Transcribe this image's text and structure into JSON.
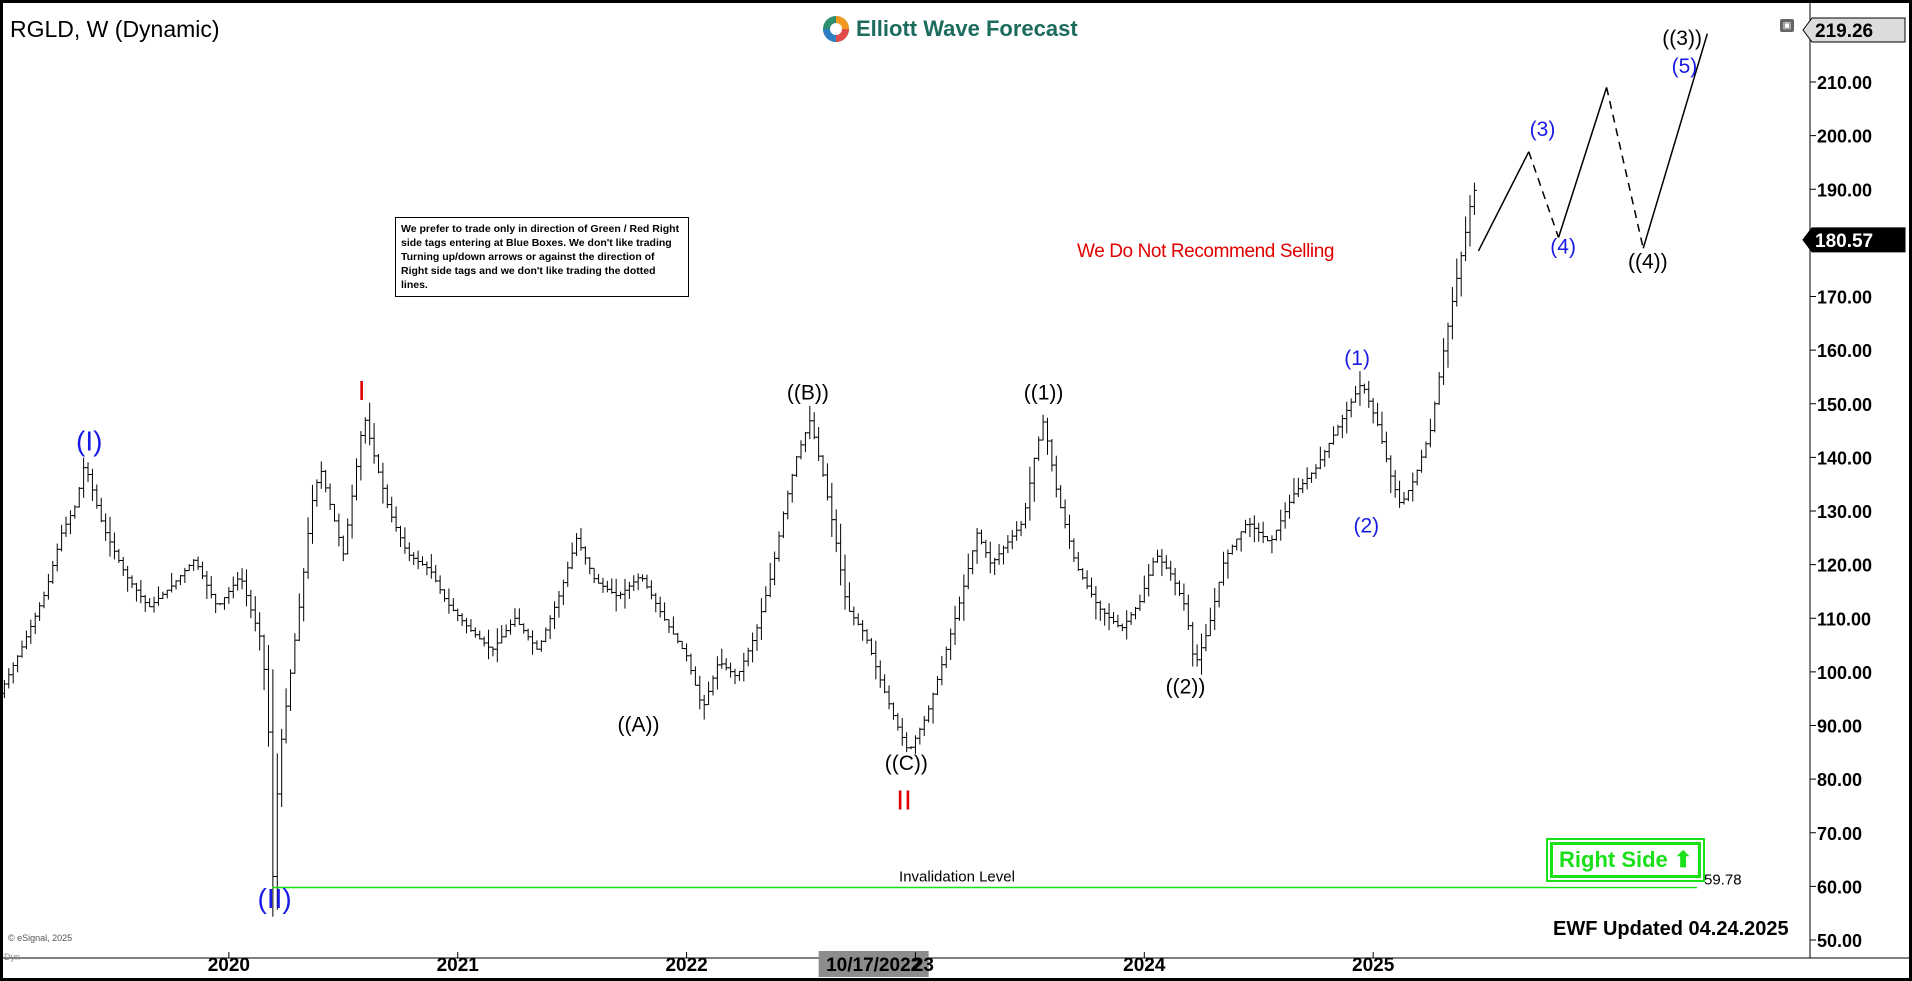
{
  "header": {
    "symbol": "RGLD, W (Dynamic)",
    "brand": "Elliott Wave Forecast"
  },
  "notes": {
    "trade_note": "We prefer to trade only in direction of Green / Red Right side tags entering at Blue Boxes. We don't like trading Turning up/down arrows or against the direction of Right side tags and we don't like trading the dotted lines.",
    "recommendation": "We Do Not Recommend Selling",
    "right_side": "Right Side",
    "updated": "EWF Updated 04.24.2025",
    "copyright": "© eSignal, 2025",
    "dyn": "Dyn"
  },
  "colors": {
    "accent_green": "#19e019",
    "wave_blue": "#1a1ae6",
    "wave_red": "#e00000",
    "price_tag_bg": "#000000"
  },
  "chart_data": {
    "type": "ohlc",
    "timeframe": "weekly",
    "x_tick_labels": [
      "2020",
      "2021",
      "2022",
      "10/17/2022",
      "23",
      "2024",
      "2025"
    ],
    "x_tick_years": [
      2020,
      2021,
      2022,
      2022.8,
      2023,
      2024,
      2025
    ],
    "ylim": [
      50,
      220
    ],
    "y_ticks": [
      50,
      60,
      70,
      80,
      90,
      100,
      110,
      120,
      130,
      140,
      150,
      160,
      170,
      180,
      190,
      200,
      210
    ],
    "y_tick_labels": [
      "50.00",
      "60.00",
      "70.00",
      "80.00",
      "90.00",
      "100.00",
      "110.00",
      "120.00",
      "130.00",
      "140.00",
      "150.00",
      "160.00",
      "170.00",
      "180.00",
      "190.00",
      "200.00",
      "210.00"
    ],
    "price_tags": [
      {
        "label": "219.26",
        "value": 219.26
      },
      {
        "label": "180.57",
        "value": 180.57
      }
    ],
    "invalidation": {
      "label": "Invalidation Level",
      "value_label": "59.78",
      "value": 59.78
    },
    "price_path": [
      [
        2019.0,
        96
      ],
      [
        2019.1,
        105
      ],
      [
        2019.2,
        115
      ],
      [
        2019.27,
        126
      ],
      [
        2019.33,
        131
      ],
      [
        2019.37,
        139
      ],
      [
        2019.45,
        127
      ],
      [
        2019.55,
        118
      ],
      [
        2019.65,
        112
      ],
      [
        2019.75,
        116
      ],
      [
        2019.85,
        121
      ],
      [
        2019.95,
        112
      ],
      [
        2020.05,
        118
      ],
      [
        2020.1,
        111
      ],
      [
        2020.14,
        106
      ],
      [
        2020.17,
        94
      ],
      [
        2020.19,
        60
      ],
      [
        2020.22,
        84
      ],
      [
        2020.27,
        100
      ],
      [
        2020.32,
        116
      ],
      [
        2020.36,
        131
      ],
      [
        2020.4,
        138
      ],
      [
        2020.45,
        130
      ],
      [
        2020.5,
        122
      ],
      [
        2020.55,
        136
      ],
      [
        2020.59,
        148
      ],
      [
        2020.63,
        141
      ],
      [
        2020.7,
        130
      ],
      [
        2020.78,
        122
      ],
      [
        2020.88,
        119
      ],
      [
        2020.95,
        113
      ],
      [
        2021.05,
        108
      ],
      [
        2021.15,
        104
      ],
      [
        2021.25,
        110
      ],
      [
        2021.35,
        104
      ],
      [
        2021.45,
        115
      ],
      [
        2021.52,
        125
      ],
      [
        2021.6,
        117
      ],
      [
        2021.7,
        114
      ],
      [
        2021.8,
        118
      ],
      [
        2021.9,
        110
      ],
      [
        2022.0,
        103
      ],
      [
        2022.07,
        93
      ],
      [
        2022.14,
        102
      ],
      [
        2022.22,
        99
      ],
      [
        2022.3,
        107
      ],
      [
        2022.37,
        118
      ],
      [
        2022.43,
        131
      ],
      [
        2022.48,
        140
      ],
      [
        2022.54,
        147
      ],
      [
        2022.6,
        136
      ],
      [
        2022.65,
        125
      ],
      [
        2022.7,
        112
      ],
      [
        2022.78,
        107
      ],
      [
        2022.85,
        98
      ],
      [
        2022.92,
        90
      ],
      [
        2022.97,
        85
      ],
      [
        2023.05,
        92
      ],
      [
        2023.12,
        102
      ],
      [
        2023.2,
        114
      ],
      [
        2023.27,
        126
      ],
      [
        2023.33,
        120
      ],
      [
        2023.4,
        124
      ],
      [
        2023.47,
        128
      ],
      [
        2023.52,
        140
      ],
      [
        2023.56,
        147
      ],
      [
        2023.62,
        133
      ],
      [
        2023.7,
        120
      ],
      [
        2023.8,
        112
      ],
      [
        2023.9,
        108
      ],
      [
        2023.98,
        113
      ],
      [
        2024.05,
        122
      ],
      [
        2024.12,
        118
      ],
      [
        2024.18,
        112
      ],
      [
        2024.22,
        101
      ],
      [
        2024.28,
        108
      ],
      [
        2024.35,
        121
      ],
      [
        2024.45,
        128
      ],
      [
        2024.55,
        124
      ],
      [
        2024.65,
        133
      ],
      [
        2024.75,
        138
      ],
      [
        2024.85,
        146
      ],
      [
        2024.95,
        154
      ],
      [
        2025.02,
        146
      ],
      [
        2025.08,
        136
      ],
      [
        2025.12,
        131
      ],
      [
        2025.18,
        136
      ],
      [
        2025.25,
        145
      ],
      [
        2025.3,
        158
      ],
      [
        2025.35,
        170
      ],
      [
        2025.4,
        181
      ],
      [
        2025.44,
        191
      ],
      [
        2025.46,
        180.57
      ]
    ],
    "projection": {
      "points": [
        [
          2025.46,
          178.5
        ],
        [
          2025.68,
          197
        ],
        [
          2025.81,
          181
        ],
        [
          2026.02,
          209
        ],
        [
          2026.18,
          179
        ],
        [
          2026.46,
          219
        ]
      ],
      "dashed_segments": [
        false,
        true,
        false,
        true,
        false
      ]
    },
    "wave_labels": [
      {
        "text": "(I)",
        "x": 2019.39,
        "y": 141.3,
        "color": "blue",
        "size": 28
      },
      {
        "text": "I",
        "x": 2020.58,
        "y": 150.7,
        "color": "red",
        "size": 28
      },
      {
        "text": "((B))",
        "x": 2022.53,
        "y": 150.8,
        "color": "black",
        "size": 21
      },
      {
        "text": "((1))",
        "x": 2023.56,
        "y": 150.8,
        "color": "black",
        "size": 21
      },
      {
        "text": "(1)",
        "x": 2024.93,
        "y": 157.2,
        "color": "blue",
        "size": 21
      },
      {
        "text": "(3)",
        "x": 2025.74,
        "y": 199.9,
        "color": "blue",
        "size": 21
      },
      {
        "text": "((3))",
        "x": 2026.35,
        "y": 216.9,
        "color": "black",
        "size": 21
      },
      {
        "text": "(5)",
        "x": 2026.36,
        "y": 211.7,
        "color": "blue",
        "size": 21
      },
      {
        "text": "(4)",
        "x": 2025.83,
        "y": 178.0,
        "color": "blue",
        "size": 21
      },
      {
        "text": "((4))",
        "x": 2026.2,
        "y": 175.2,
        "color": "black",
        "size": 21
      },
      {
        "text": "(2)",
        "x": 2024.97,
        "y": 126.0,
        "color": "blue",
        "size": 21
      },
      {
        "text": "((2))",
        "x": 2024.18,
        "y": 96.0,
        "color": "black",
        "size": 21
      },
      {
        "text": "((A))",
        "x": 2021.79,
        "y": 88.9,
        "color": "black",
        "size": 21
      },
      {
        "text": "((C))",
        "x": 2022.96,
        "y": 81.7,
        "color": "black",
        "size": 21
      },
      {
        "text": "II",
        "x": 2022.95,
        "y": 74.3,
        "color": "red",
        "size": 28
      },
      {
        "text": "(II)",
        "x": 2020.2,
        "y": 56.0,
        "color": "blue",
        "size": 28
      }
    ]
  }
}
